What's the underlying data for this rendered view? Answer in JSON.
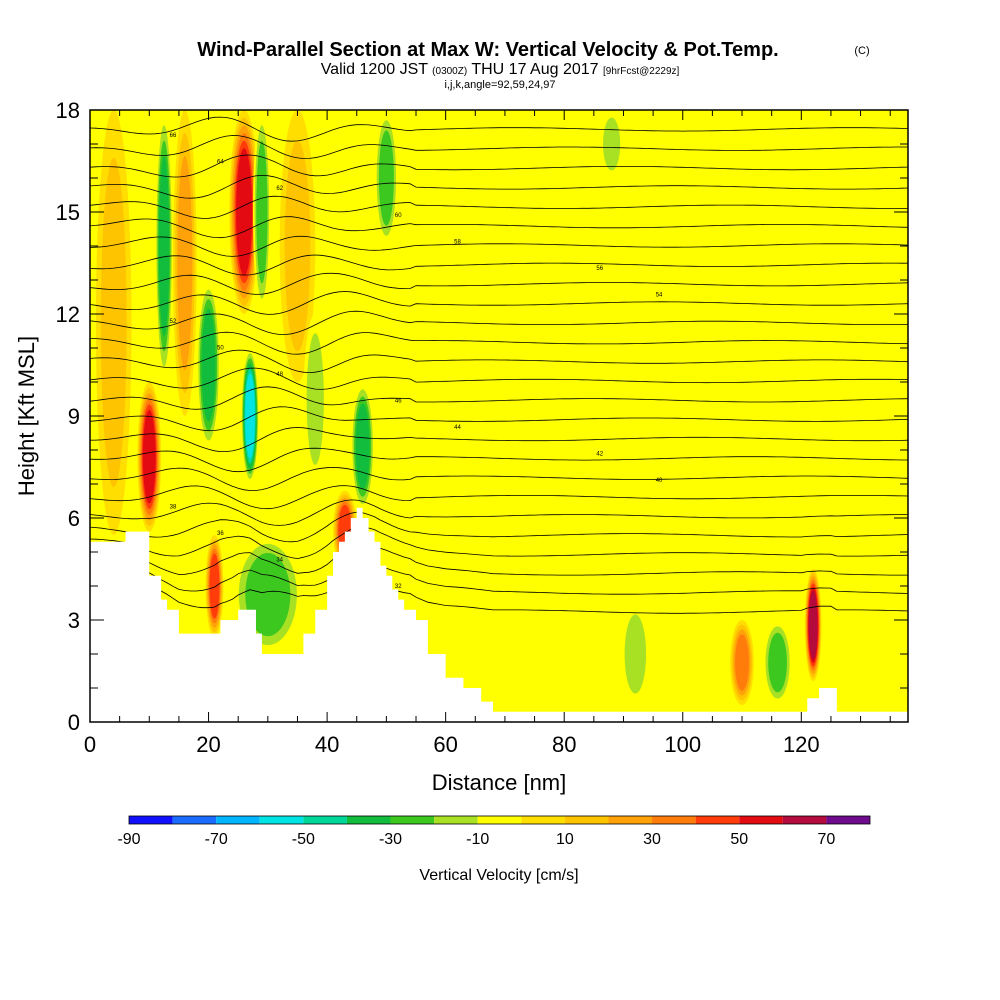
{
  "chart_data": {
    "type": "heatmap",
    "title": "Wind-Parallel Section at Max W: Vertical Velocity & Pot.Temp.",
    "title_mark": "(C)",
    "subtitle_parts": [
      "Valid 1200 JST",
      "(0300Z)",
      "THU 17 Aug 2017",
      "[9hrFcst@2229z]"
    ],
    "subsubtitle": "i,j,k,angle=92,59,24,97",
    "xlabel": "Distance [nm]",
    "ylabel": "Height [Kft MSL]",
    "xlim": [
      0,
      138
    ],
    "ylim": [
      0,
      18
    ],
    "x_ticks": [
      0,
      20,
      40,
      60,
      80,
      100,
      120
    ],
    "y_ticks": [
      0,
      3,
      6,
      9,
      12,
      15,
      18
    ],
    "x_minor_step": 5,
    "y_minor_step": 1,
    "colorbar": {
      "label": "Vertical Velocity [cm/s]",
      "tick_labels": [
        "-90",
        "-70",
        "-50",
        "-30",
        "-10",
        "10",
        "30",
        "50",
        "70"
      ],
      "bins": [
        {
          "from": -90,
          "to": -80,
          "color": "#1010ff"
        },
        {
          "from": -80,
          "to": -70,
          "color": "#1a6cff"
        },
        {
          "from": -70,
          "to": -60,
          "color": "#00b4ff"
        },
        {
          "from": -60,
          "to": -50,
          "color": "#00e4e4"
        },
        {
          "from": -50,
          "to": -40,
          "color": "#00d69a"
        },
        {
          "from": -40,
          "to": -30,
          "color": "#12bc3c"
        },
        {
          "from": -30,
          "to": -20,
          "color": "#3cc81e"
        },
        {
          "from": -20,
          "to": -10,
          "color": "#a8e024"
        },
        {
          "from": -10,
          "to": 0,
          "color": "#ffff00"
        },
        {
          "from": 0,
          "to": 10,
          "color": "#ffde00"
        },
        {
          "from": 10,
          "to": 20,
          "color": "#ffc400"
        },
        {
          "from": 20,
          "to": 30,
          "color": "#ffa20a"
        },
        {
          "from": 30,
          "to": 40,
          "color": "#ff7c0a"
        },
        {
          "from": 40,
          "to": 50,
          "color": "#ff3c0a"
        },
        {
          "from": 50,
          "to": 60,
          "color": "#e40a12"
        },
        {
          "from": 60,
          "to": 70,
          "color": "#b40a3c"
        },
        {
          "from": 70,
          "to": 80,
          "color": "#6e0a8c"
        }
      ]
    },
    "velocity_features": [
      {
        "x": 4,
        "y1": 5.5,
        "y2": 18,
        "w": 3,
        "v": 12
      },
      {
        "x": 10,
        "y1": 5.6,
        "y2": 10,
        "w": 2,
        "v": 52
      },
      {
        "x": 12.5,
        "y1": 10,
        "y2": 18,
        "w": 1.5,
        "v": -35
      },
      {
        "x": 16,
        "y1": 9,
        "y2": 18,
        "w": 2,
        "v": 28
      },
      {
        "x": 21,
        "y1": 2.5,
        "y2": 5.5,
        "w": 1.5,
        "v": 48
      },
      {
        "x": 20,
        "y1": 8,
        "y2": 13,
        "w": 2,
        "v": -40
      },
      {
        "x": 26,
        "y1": 12,
        "y2": 18,
        "w": 2.5,
        "v": 58
      },
      {
        "x": 27,
        "y1": 7,
        "y2": 11,
        "w": 1.5,
        "v": -58
      },
      {
        "x": 29,
        "y1": 12,
        "y2": 18,
        "w": 1.5,
        "v": -30
      },
      {
        "x": 30,
        "y1": 2,
        "y2": 5.5,
        "w": 6,
        "v": -28
      },
      {
        "x": 35,
        "y1": 10,
        "y2": 18,
        "w": 3,
        "v": 18
      },
      {
        "x": 38,
        "y1": 7,
        "y2": 12,
        "w": 2,
        "v": -20
      },
      {
        "x": 43,
        "y1": 4.5,
        "y2": 6.8,
        "w": 2,
        "v": 50
      },
      {
        "x": 46,
        "y1": 6.2,
        "y2": 10,
        "w": 2,
        "v": -38
      },
      {
        "x": 50,
        "y1": 14,
        "y2": 18,
        "w": 2,
        "v": -22
      },
      {
        "x": 88,
        "y1": 16,
        "y2": 18,
        "w": 2,
        "v": -20
      },
      {
        "x": 92,
        "y1": 0.5,
        "y2": 3.5,
        "w": 2.5,
        "v": -15
      },
      {
        "x": 110,
        "y1": 0.5,
        "y2": 3,
        "w": 2,
        "v": 32
      },
      {
        "x": 116,
        "y1": 0.5,
        "y2": 3,
        "w": 2.5,
        "v": -22
      },
      {
        "x": 122,
        "y1": 1.2,
        "y2": 4.5,
        "w": 1.4,
        "v": 62
      }
    ],
    "theta_contour_labels": [
      "66",
      "64",
      "62",
      "60",
      "58",
      "56",
      "54",
      "52",
      "50",
      "48",
      "46",
      "44",
      "42",
      "40",
      "38",
      "36",
      "34",
      "32"
    ],
    "terrain_kft": [
      [
        0,
        5.3
      ],
      [
        3,
        5.3
      ],
      [
        6,
        5.6
      ],
      [
        9,
        5.6
      ],
      [
        10,
        4.3
      ],
      [
        12,
        3.6
      ],
      [
        13,
        3.3
      ],
      [
        15,
        2.6
      ],
      [
        21,
        2.6
      ],
      [
        22,
        3.0
      ],
      [
        24,
        3.0
      ],
      [
        25,
        3.3
      ],
      [
        27,
        3.3
      ],
      [
        28,
        2.6
      ],
      [
        29,
        2.0
      ],
      [
        35,
        2.0
      ],
      [
        36,
        2.6
      ],
      [
        38,
        3.3
      ],
      [
        40,
        4.3
      ],
      [
        41,
        5.0
      ],
      [
        42,
        5.3
      ],
      [
        43,
        5.6
      ],
      [
        44,
        6.0
      ],
      [
        45,
        6.3
      ],
      [
        46,
        6.0
      ],
      [
        47,
        5.6
      ],
      [
        48,
        5.3
      ],
      [
        49,
        4.6
      ],
      [
        50,
        4.3
      ],
      [
        51,
        3.9
      ],
      [
        52,
        3.6
      ],
      [
        53,
        3.3
      ],
      [
        55,
        3.0
      ],
      [
        57,
        2.0
      ],
      [
        60,
        1.3
      ],
      [
        63,
        1.0
      ],
      [
        66,
        0.6
      ],
      [
        68,
        0.3
      ],
      [
        120,
        0.3
      ],
      [
        121,
        0.7
      ],
      [
        123,
        1.0
      ],
      [
        125,
        1.0
      ],
      [
        126,
        0.3
      ],
      [
        138,
        0.3
      ]
    ]
  }
}
